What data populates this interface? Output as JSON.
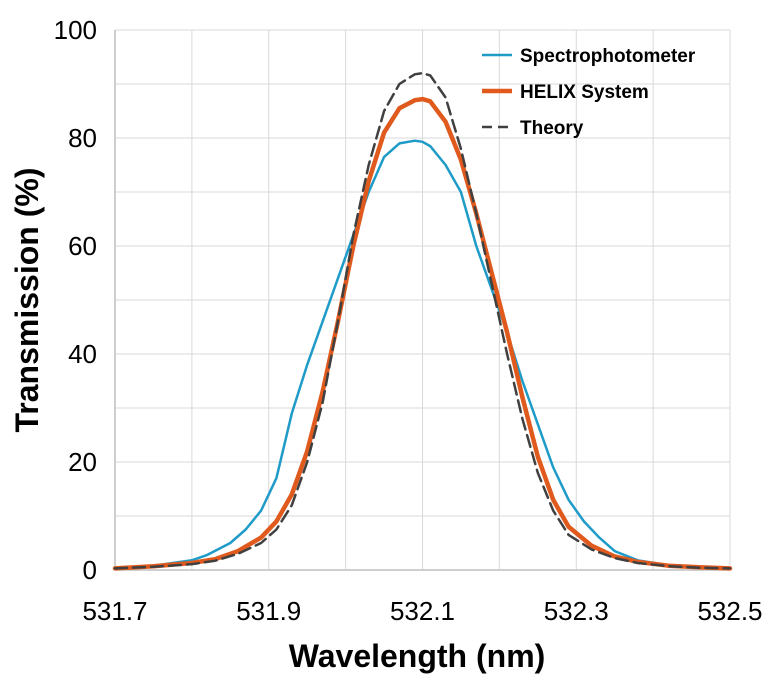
{
  "chart_data": {
    "type": "line",
    "title": "",
    "xlabel": "Wavelength (nm)",
    "ylabel": "Transmission (%)",
    "xlim": [
      531.7,
      532.5
    ],
    "ylim": [
      0,
      100
    ],
    "x_ticks": [
      531.7,
      531.8,
      531.9,
      532.0,
      532.1,
      532.2,
      532.3,
      532.4,
      532.5
    ],
    "x_tick_labels": [
      "531.7",
      "",
      "531.9",
      "",
      "532.1",
      "",
      "532.3",
      "",
      "532.5"
    ],
    "y_ticks": [
      0,
      10,
      20,
      30,
      40,
      50,
      60,
      70,
      80,
      90,
      100
    ],
    "y_tick_labels": [
      "0",
      "",
      "20",
      "",
      "40",
      "",
      "60",
      "",
      "80",
      "",
      "100"
    ],
    "grid": true,
    "legend_position": "top-right",
    "series": [
      {
        "name": "Spectrophotometer",
        "color": "#1f9bc8",
        "style": "solid",
        "x": [
          531.7,
          531.75,
          531.8,
          531.82,
          531.85,
          531.87,
          531.89,
          531.91,
          531.93,
          531.95,
          531.97,
          531.99,
          532.01,
          532.03,
          532.05,
          532.07,
          532.09,
          532.1,
          532.11,
          532.13,
          532.15,
          532.17,
          532.19,
          532.21,
          532.23,
          532.25,
          532.27,
          532.29,
          532.31,
          532.33,
          532.35,
          532.38,
          532.42,
          532.46,
          532.5
        ],
        "values": [
          0.3,
          0.8,
          1.8,
          2.8,
          5.0,
          7.5,
          11.0,
          17.0,
          29.0,
          38.0,
          46.0,
          54.0,
          62.0,
          70.0,
          76.5,
          79.0,
          79.5,
          79.3,
          78.5,
          75.0,
          70.0,
          60.0,
          52.0,
          44.0,
          35.0,
          27.0,
          19.0,
          13.0,
          9.0,
          6.0,
          3.5,
          1.8,
          0.9,
          0.5,
          0.3
        ]
      },
      {
        "name": "HELIX System",
        "color": "#e05a1e",
        "style": "solid",
        "x": [
          531.7,
          531.75,
          531.8,
          531.83,
          531.86,
          531.89,
          531.91,
          531.93,
          531.95,
          531.97,
          531.99,
          532.01,
          532.03,
          532.05,
          532.07,
          532.09,
          532.1,
          532.11,
          532.13,
          532.15,
          532.17,
          532.19,
          532.21,
          532.23,
          532.25,
          532.27,
          532.29,
          532.32,
          532.35,
          532.38,
          532.42,
          532.46,
          532.5
        ],
        "values": [
          0.3,
          0.7,
          1.3,
          2.0,
          3.5,
          6.0,
          9.0,
          14.0,
          22.0,
          33.0,
          46.0,
          60.0,
          72.0,
          81.0,
          85.5,
          87.0,
          87.2,
          86.8,
          83.0,
          76.0,
          66.0,
          55.0,
          44.0,
          32.0,
          21.0,
          13.0,
          8.0,
          4.5,
          2.5,
          1.5,
          0.8,
          0.5,
          0.3
        ]
      },
      {
        "name": "Theory",
        "color": "#404040",
        "style": "dashed",
        "x": [
          531.7,
          531.75,
          531.8,
          531.83,
          531.86,
          531.89,
          531.91,
          531.93,
          531.95,
          531.97,
          531.99,
          532.01,
          532.03,
          532.05,
          532.07,
          532.09,
          532.1,
          532.11,
          532.13,
          532.15,
          532.17,
          532.19,
          532.21,
          532.23,
          532.25,
          532.27,
          532.29,
          532.32,
          532.35,
          532.38,
          532.42,
          532.46,
          532.5
        ],
        "values": [
          0.3,
          0.6,
          1.1,
          1.7,
          3.0,
          5.0,
          7.5,
          12.0,
          20.0,
          31.0,
          46.0,
          62.0,
          75.0,
          85.0,
          90.0,
          91.8,
          92.0,
          91.6,
          87.5,
          78.0,
          66.0,
          53.0,
          40.0,
          28.0,
          18.0,
          11.0,
          6.5,
          3.8,
          2.2,
          1.3,
          0.7,
          0.4,
          0.3
        ]
      }
    ]
  }
}
